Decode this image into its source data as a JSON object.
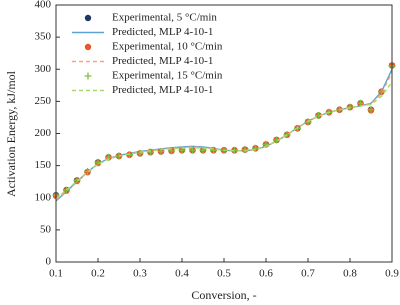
{
  "chart_data": {
    "type": "line",
    "x_label": "Conversion, -",
    "y_label": "Activation Energy, kJ/mol",
    "xlim": [
      0.1,
      0.9
    ],
    "xticks": [
      0.1,
      0.2,
      0.3,
      0.4,
      0.5,
      0.6,
      0.7,
      0.8,
      0.9
    ],
    "ylim": [
      0,
      400
    ],
    "yticks": [
      0,
      50,
      100,
      150,
      200,
      250,
      300,
      350,
      400
    ],
    "legend": "upper-left",
    "x": [
      0.1,
      0.125,
      0.15,
      0.175,
      0.2,
      0.225,
      0.25,
      0.275,
      0.3,
      0.325,
      0.35,
      0.375,
      0.4,
      0.425,
      0.45,
      0.475,
      0.5,
      0.525,
      0.55,
      0.575,
      0.6,
      0.625,
      0.65,
      0.675,
      0.7,
      0.725,
      0.75,
      0.775,
      0.8,
      0.825,
      0.85,
      0.875,
      0.9
    ],
    "series": [
      {
        "name": "Experimental, 5 °C/min",
        "color": "#1f3864",
        "style": "circle",
        "values": [
          104,
          112,
          127,
          140,
          155,
          163,
          165,
          167,
          169,
          171,
          172,
          173,
          174,
          174,
          174,
          174,
          174,
          174,
          175,
          177,
          183,
          190,
          198,
          208,
          218,
          228,
          233,
          237,
          241,
          247,
          237,
          265,
          306
        ]
      },
      {
        "name": "Predicted, MLP 4-10-1",
        "color": "#5ba3d0",
        "style": "solid",
        "values": [
          95,
          110,
          125,
          140,
          153,
          161,
          166,
          169,
          172,
          174,
          176,
          178,
          179,
          180,
          179,
          177,
          174,
          173,
          173,
          175,
          180,
          188,
          198,
          209,
          219,
          227,
          233,
          237,
          240,
          243,
          247,
          265,
          300
        ]
      },
      {
        "name": "Experimental, 10 °C/min",
        "color": "#e8562a",
        "style": "circle",
        "values": [
          103,
          111,
          126,
          140,
          154,
          163,
          165,
          167,
          169,
          171,
          172,
          173,
          174,
          174,
          174,
          174,
          174,
          174,
          175,
          177,
          183,
          190,
          198,
          208,
          218,
          228,
          233,
          237,
          241,
          247,
          236,
          265,
          306
        ]
      },
      {
        "name": "Predicted, MLP 4-10-1",
        "color": "#f4a582",
        "style": "dashed",
        "values": [
          97,
          111,
          126,
          140,
          153,
          161,
          165,
          168,
          171,
          173,
          175,
          177,
          178,
          179,
          178,
          176,
          174,
          173,
          173,
          175,
          180,
          188,
          198,
          209,
          219,
          227,
          233,
          237,
          240,
          243,
          246,
          262,
          295
        ]
      },
      {
        "name": "Experimental, 15 °C/min",
        "color": "#7fbf3f",
        "style": "plus",
        "values": [
          104,
          112,
          127,
          141,
          155,
          163,
          165,
          167,
          169,
          171,
          172,
          173,
          174,
          174,
          174,
          174,
          174,
          174,
          175,
          177,
          183,
          190,
          198,
          208,
          218,
          228,
          233,
          237,
          241,
          247,
          237,
          265,
          305
        ]
      },
      {
        "name": "Predicted, MLP 4-10-1",
        "color": "#a6d96a",
        "style": "dashed",
        "values": [
          99,
          112,
          126,
          140,
          152,
          160,
          165,
          168,
          171,
          173,
          175,
          176,
          177,
          178,
          177,
          176,
          174,
          173,
          173,
          175,
          180,
          188,
          198,
          209,
          219,
          227,
          233,
          237,
          240,
          243,
          245,
          258,
          280
        ]
      }
    ]
  }
}
